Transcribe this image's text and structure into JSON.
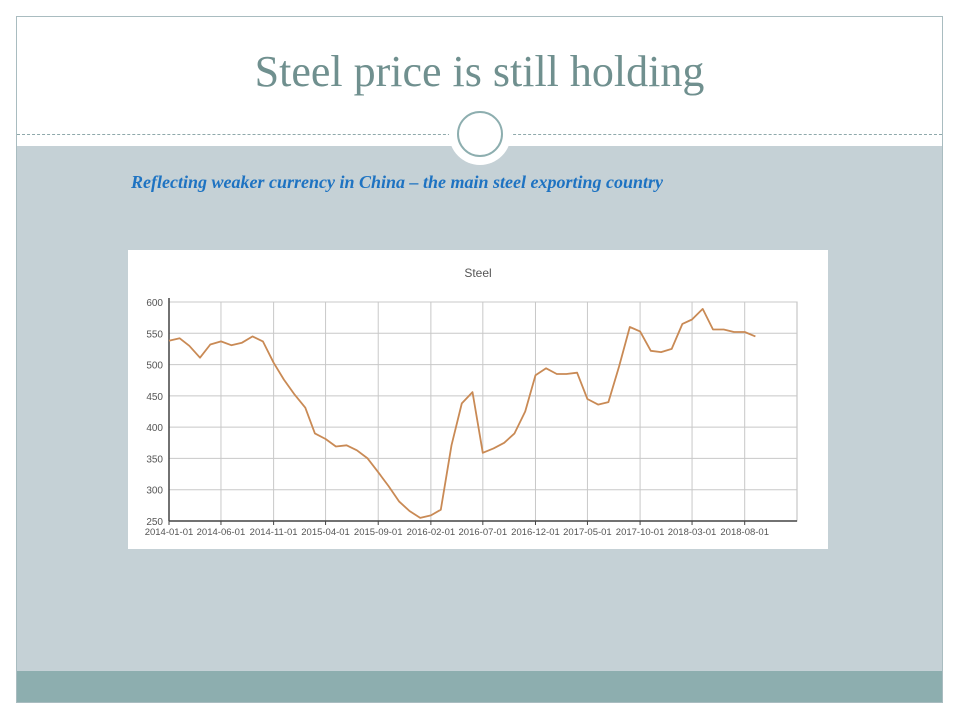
{
  "slide": {
    "title": "Steel price is still holding",
    "subtitle": "Reflecting weaker currency in China – the main steel exporting country"
  },
  "colors": {
    "title": "#70908f",
    "band": "#c5d1d6",
    "footer": "#8daeaf",
    "subtitle": "#1e73c2",
    "line": "#c98a55"
  },
  "chart_data": {
    "type": "line",
    "title": "Steel",
    "xlabel": "",
    "ylabel": "",
    "ylim": [
      250,
      600
    ],
    "yticks": [
      250,
      300,
      350,
      400,
      450,
      500,
      550,
      600
    ],
    "xticks": [
      "2014-01-01",
      "2014-06-01",
      "2014-11-01",
      "2015-04-01",
      "2015-09-01",
      "2016-02-01",
      "2016-07-01",
      "2016-12-01",
      "2017-05-01",
      "2017-10-01",
      "2018-03-01",
      "2018-08-01"
    ],
    "grid": true,
    "legend": "none",
    "series": [
      {
        "x": [
          "2014-01-01",
          "2014-02-01",
          "2014-03-01",
          "2014-04-01",
          "2014-05-01",
          "2014-06-01",
          "2014-07-01",
          "2014-08-01",
          "2014-09-01",
          "2014-10-01",
          "2014-11-01",
          "2014-12-01",
          "2015-01-01",
          "2015-02-01",
          "2015-03-01",
          "2015-04-01",
          "2015-05-01",
          "2015-06-01",
          "2015-07-01",
          "2015-08-01",
          "2015-09-01",
          "2015-10-01",
          "2015-11-01",
          "2015-12-01",
          "2016-01-01",
          "2016-02-01",
          "2016-03-01",
          "2016-04-01",
          "2016-05-01",
          "2016-06-01",
          "2016-07-01",
          "2016-08-01",
          "2016-09-01",
          "2016-10-01",
          "2016-11-01",
          "2016-12-01",
          "2017-01-01",
          "2017-02-01",
          "2017-03-01",
          "2017-04-01",
          "2017-05-01",
          "2017-06-01",
          "2017-07-01",
          "2017-08-01",
          "2017-09-01",
          "2017-10-01",
          "2017-11-01",
          "2017-12-01",
          "2018-01-01",
          "2018-02-01",
          "2018-03-01",
          "2018-04-01",
          "2018-05-01",
          "2018-06-01",
          "2018-07-01",
          "2018-08-01",
          "2018-09-01"
        ],
        "values": [
          538,
          542,
          530,
          511,
          532,
          537,
          531,
          535,
          545,
          537,
          503,
          476,
          452,
          431,
          390,
          381,
          369,
          371,
          363,
          350,
          328,
          306,
          281,
          266,
          255,
          259,
          268,
          371,
          438,
          456,
          359,
          366,
          375,
          390,
          425,
          483,
          494,
          485,
          485,
          487,
          445,
          436,
          440,
          497,
          560,
          553,
          522,
          520,
          525,
          565,
          572,
          589,
          556,
          556,
          552,
          552,
          545
        ]
      }
    ]
  }
}
